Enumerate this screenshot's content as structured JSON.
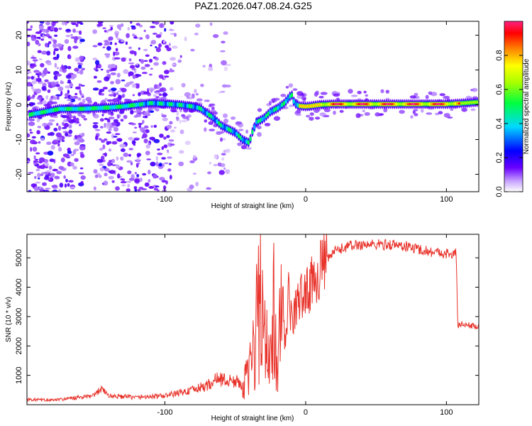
{
  "title": "PAZ1.2026.047.08.24.G25",
  "chart_data": [
    {
      "type": "heatmap",
      "xlabel": "Height of straight line (km)",
      "ylabel": "Frequency (Hz)",
      "xlim": [
        -198,
        123
      ],
      "ylim": [
        -25,
        24
      ],
      "xticks": [
        -100,
        0,
        100
      ],
      "xtick_labels": [
        "-100",
        "0",
        "100"
      ],
      "yticks": [
        -20,
        -10,
        0,
        10,
        20
      ],
      "ytick_labels": [
        "-20",
        "-10",
        "0",
        "10",
        "20"
      ],
      "ridge": [
        [
          -198,
          -3
        ],
        [
          -185,
          -2
        ],
        [
          -175,
          -1.2
        ],
        [
          -160,
          -1.2
        ],
        [
          -150,
          -1
        ],
        [
          -140,
          -0.8
        ],
        [
          -130,
          -0.5
        ],
        [
          -120,
          0
        ],
        [
          -110,
          0.5
        ],
        [
          -100,
          0.3
        ],
        [
          -90,
          0
        ],
        [
          -80,
          -0.5
        ],
        [
          -75,
          -1
        ],
        [
          -70,
          -2.5
        ],
        [
          -65,
          -4
        ],
        [
          -60,
          -6
        ],
        [
          -55,
          -7
        ],
        [
          -50,
          -8
        ],
        [
          -45,
          -10
        ],
        [
          -40,
          -11
        ],
        [
          -38,
          -8
        ],
        [
          -35,
          -5
        ],
        [
          -30,
          -4
        ],
        [
          -25,
          -2
        ],
        [
          -20,
          -1
        ],
        [
          -15,
          0.5
        ],
        [
          -12,
          2
        ],
        [
          -10,
          3
        ],
        [
          -8,
          0.5
        ],
        [
          -5,
          -0.3
        ],
        [
          0,
          -0.5
        ],
        [
          5,
          -0.3
        ],
        [
          10,
          0
        ],
        [
          20,
          0.2
        ],
        [
          40,
          0.2
        ],
        [
          60,
          0.2
        ],
        [
          80,
          0.2
        ],
        [
          100,
          0.2
        ],
        [
          110,
          0.4
        ],
        [
          123,
          0.8
        ]
      ],
      "colorbar": {
        "label": "Normalized spectral amplitude",
        "range": [
          0,
          1
        ],
        "ticks": [
          0,
          0.2,
          0.4,
          0.6,
          0.8
        ],
        "tick_labels": [
          "0.0",
          "0.2",
          "0.4",
          "0.6",
          "0.8"
        ]
      }
    },
    {
      "type": "line",
      "xlabel": "Height of straight line (km)",
      "ylabel": "SNR (10 * v/v)",
      "xlim": [
        -198,
        123
      ],
      "ylim": [
        0,
        5800
      ],
      "xticks": [
        -100,
        0,
        100
      ],
      "xtick_labels": [
        "-100",
        "0",
        "100"
      ],
      "yticks": [
        1000,
        2000,
        3000,
        4000,
        5000
      ],
      "ytick_labels": [
        "1000",
        "2000",
        "3000",
        "4000",
        "5000"
      ],
      "series": [
        {
          "name": "SNR",
          "color": "#e8322a",
          "x": [
            -198,
            -180,
            -160,
            -150,
            -145,
            -140,
            -120,
            -100,
            -90,
            -80,
            -70,
            -62,
            -55,
            -50,
            -45,
            -40,
            -35,
            -32,
            -30,
            -25,
            -22,
            -20,
            -18,
            -15,
            -12,
            -10,
            -5,
            0,
            5,
            10,
            15,
            20,
            25,
            30,
            40,
            50,
            60,
            70,
            80,
            90,
            100,
            105,
            107,
            108,
            110,
            123
          ],
          "values": [
            180,
            150,
            250,
            300,
            600,
            300,
            250,
            300,
            400,
            500,
            650,
            900,
            800,
            800,
            700,
            1000,
            2800,
            3500,
            2600,
            1200,
            4000,
            700,
            3200,
            1800,
            3800,
            2800,
            3600,
            3800,
            4200,
            4600,
            4900,
            5200,
            5300,
            5400,
            5450,
            5450,
            5450,
            5400,
            5300,
            5200,
            5150,
            5100,
            5200,
            2700,
            2750,
            2650
          ]
        }
      ]
    }
  ],
  "colors": {
    "line": "#e8322a",
    "axis": "#000000",
    "background": "#ffffff"
  }
}
